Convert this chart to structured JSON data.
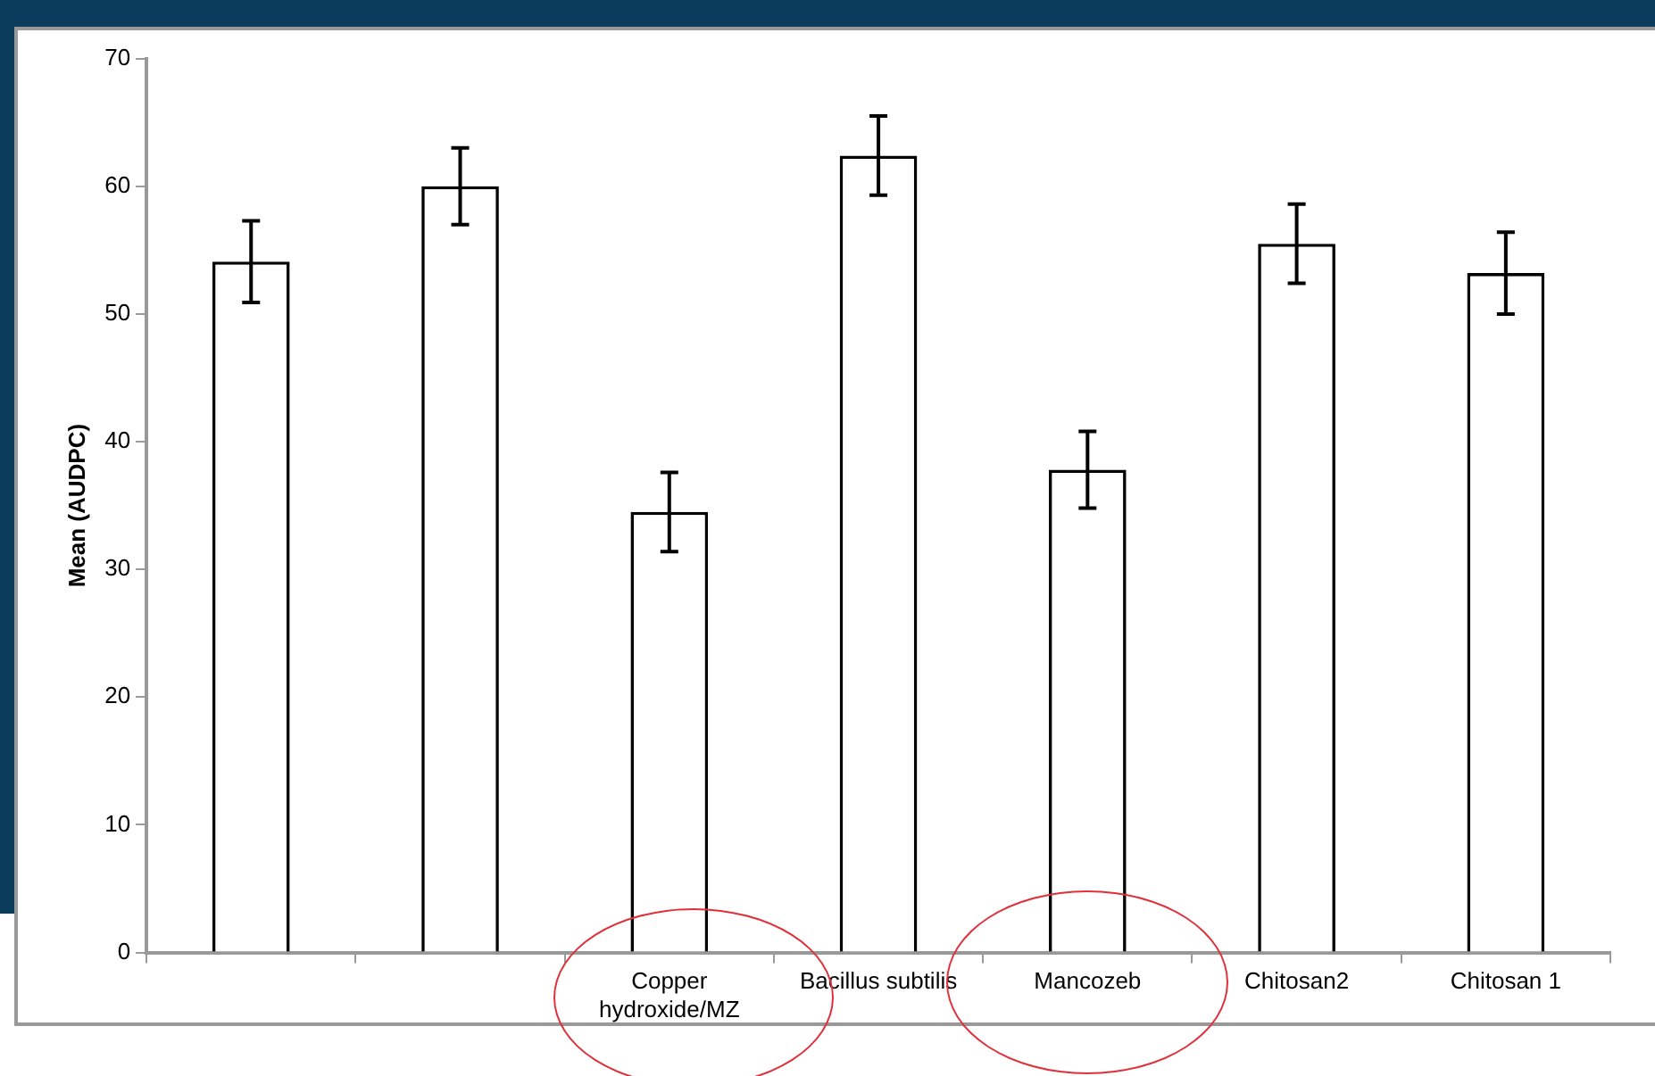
{
  "chart_data": {
    "type": "bar",
    "ylabel": "Mean (AUDPC)",
    "categories": [
      null,
      null,
      "Copper hydroxide/MZ",
      "Bacillus subtilis",
      "Mancozeb",
      "Chitosan2",
      "Chitosan 1"
    ],
    "values": [
      54.1,
      60.0,
      34.5,
      62.4,
      37.8,
      55.5,
      53.2
    ],
    "errors": [
      3.2,
      3.0,
      3.1,
      3.1,
      3.0,
      3.1,
      3.2
    ],
    "color": "#ffffff",
    "ylim": [
      0,
      70
    ],
    "yticks": [
      0,
      10,
      20,
      30,
      40,
      50,
      60,
      70
    ],
    "grid": false,
    "legend": false
  }
}
